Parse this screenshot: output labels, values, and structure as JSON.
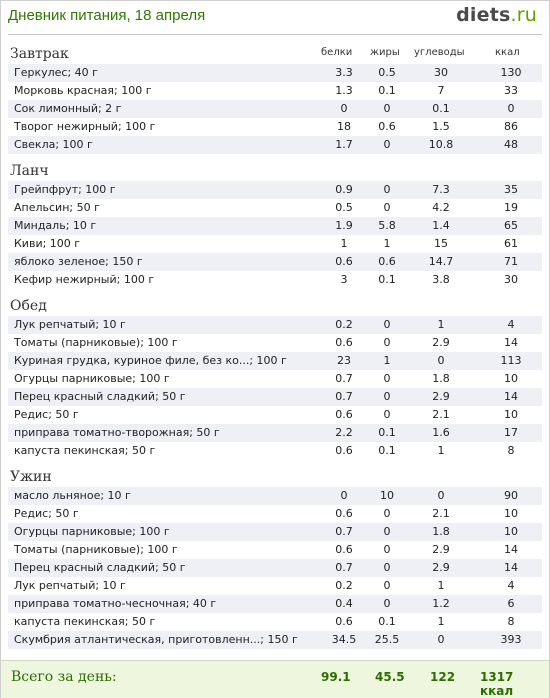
{
  "header": {
    "title": "Дневник питания, 18 апреля",
    "brand_main": "diets",
    "brand_tld": ".ru"
  },
  "columns": {
    "protein": "белки",
    "fat": "жиры",
    "carbs": "углеводы",
    "kcal": "ккал"
  },
  "sections": [
    {
      "title": "Завтрак",
      "rows": [
        [
          "Геркулес; 40 г",
          "3.3",
          "0.5",
          "30",
          "130"
        ],
        [
          "Морковь красная; 100 г",
          "1.3",
          "0.1",
          "7",
          "33"
        ],
        [
          "Сок лимонный; 2 г",
          "0",
          "0",
          "0.1",
          "0"
        ],
        [
          "Творог нежирный; 100 г",
          "18",
          "0.6",
          "1.5",
          "86"
        ],
        [
          "Свекла; 100 г",
          "1.7",
          "0",
          "10.8",
          "48"
        ]
      ]
    },
    {
      "title": "Ланч",
      "rows": [
        [
          "Грейпфрут; 100 г",
          "0.9",
          "0",
          "7.3",
          "35"
        ],
        [
          "Апельсин; 50 г",
          "0.5",
          "0",
          "4.2",
          "19"
        ],
        [
          "Миндаль; 10 г",
          "1.9",
          "5.8",
          "1.4",
          "65"
        ],
        [
          "Киви; 100 г",
          "1",
          "1",
          "15",
          "61"
        ],
        [
          "яблоко зеленое; 150 г",
          "0.6",
          "0.6",
          "14.7",
          "71"
        ],
        [
          "Кефир нежирный; 100 г",
          "3",
          "0.1",
          "3.8",
          "30"
        ]
      ]
    },
    {
      "title": "Обед",
      "rows": [
        [
          "Лук репчатый; 10 г",
          "0.2",
          "0",
          "1",
          "4"
        ],
        [
          "Томаты (парниковые); 100 г",
          "0.6",
          "0",
          "2.9",
          "14"
        ],
        [
          "Куриная грудка, куриное филе, без ко...; 100 г",
          "23",
          "1",
          "0",
          "113"
        ],
        [
          "Огурцы парниковые; 100 г",
          "0.7",
          "0",
          "1.8",
          "10"
        ],
        [
          "Перец красный сладкий; 50 г",
          "0.7",
          "0",
          "2.9",
          "14"
        ],
        [
          "Редис; 50 г",
          "0.6",
          "0",
          "2.1",
          "10"
        ],
        [
          "приправа томатно-творожная; 50 г",
          "2.2",
          "0.1",
          "1.6",
          "17"
        ],
        [
          "капуста пекинская; 50 г",
          "0.6",
          "0.1",
          "1",
          "8"
        ]
      ]
    },
    {
      "title": "Ужин",
      "rows": [
        [
          "масло льняное; 10 г",
          "0",
          "10",
          "0",
          "90"
        ],
        [
          "Редис; 50 г",
          "0.6",
          "0",
          "2.1",
          "10"
        ],
        [
          "Огурцы парниковые; 100 г",
          "0.7",
          "0",
          "1.8",
          "10"
        ],
        [
          "Томаты (парниковые); 100 г",
          "0.6",
          "0",
          "2.9",
          "14"
        ],
        [
          "Перец красный сладкий; 50 г",
          "0.7",
          "0",
          "2.9",
          "14"
        ],
        [
          "Лук репчатый; 10 г",
          "0.2",
          "0",
          "1",
          "4"
        ],
        [
          "приправа томатно-чесночная; 40 г",
          "0.4",
          "0",
          "1.2",
          "6"
        ],
        [
          "капуста пекинская; 50 г",
          "0.6",
          "0.1",
          "1",
          "8"
        ],
        [
          "Скумбрия атлантическая, приготовленн...; 150 г",
          "34.5",
          "25.5",
          "0",
          "393"
        ]
      ]
    }
  ],
  "totals": {
    "label": "Всего за день:",
    "protein": "99.1",
    "fat": "45.5",
    "carbs": "122",
    "kcal": "1317 ккал"
  }
}
